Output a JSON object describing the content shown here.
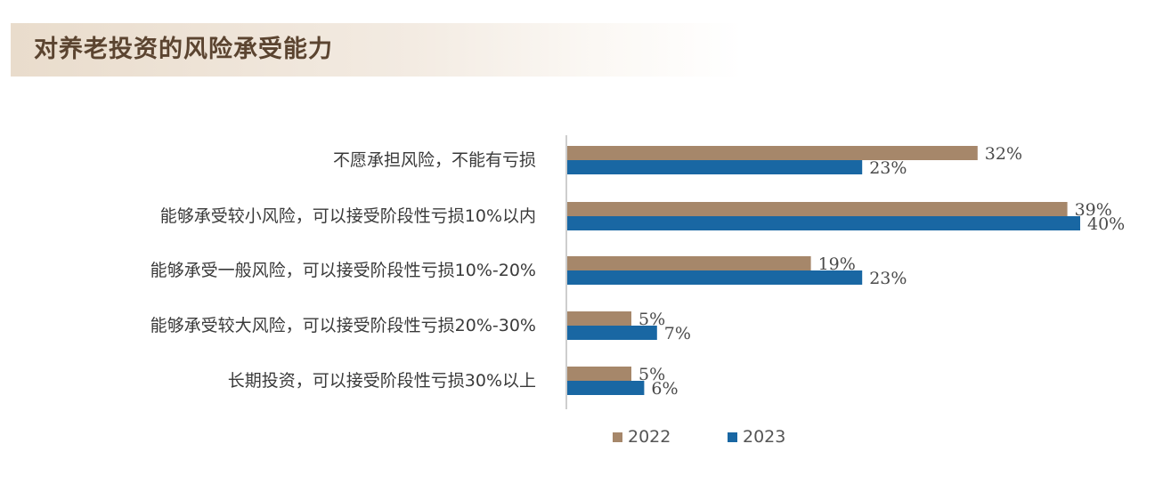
{
  "title": "对养老投资的风险承受能力",
  "colors": {
    "s2022": "#a6876a",
    "s2023": "#1967a3",
    "axis": "#bdbdbd"
  },
  "chart_data": {
    "type": "bar",
    "orientation": "horizontal",
    "categories": [
      "不愿承担风险，不能有亏损",
      "能够承受较小风险，可以接受阶段性亏损10%以内",
      "能够承受一般风险，可以接受阶段性亏损10%-20%",
      "能够承受较大风险，可以接受阶段性亏损20%-30%",
      "长期投资，可以接受阶段性亏损30%以上"
    ],
    "series": [
      {
        "name": "2022",
        "values": [
          32,
          39,
          19,
          5,
          5
        ]
      },
      {
        "name": "2023",
        "values": [
          23,
          40,
          23,
          7,
          6
        ]
      }
    ],
    "value_suffix": "%",
    "xlim": [
      0,
      100
    ],
    "grid": false,
    "legend_position": "bottom"
  }
}
